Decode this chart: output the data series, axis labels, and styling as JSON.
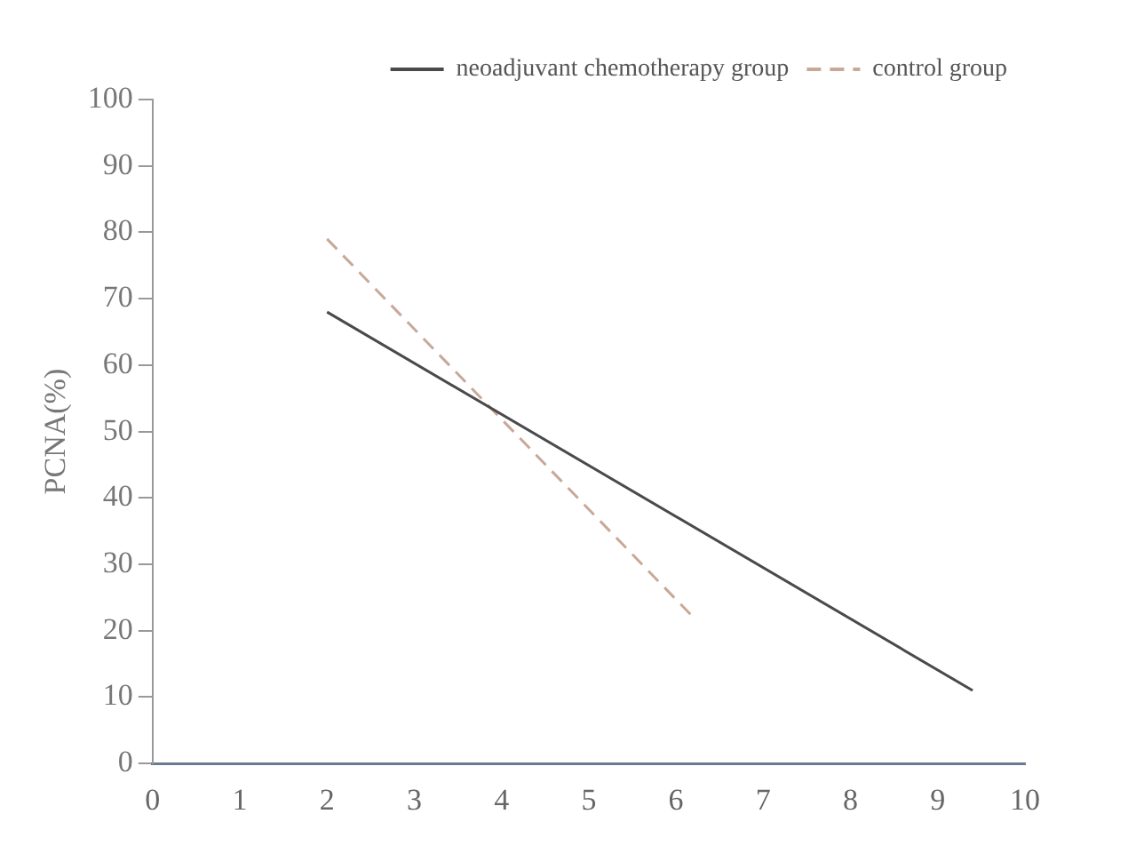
{
  "chart_data": {
    "type": "line",
    "ylabel": "PCNA(%)",
    "xlim": [
      0,
      10
    ],
    "xticks": [
      0,
      1,
      2,
      3,
      4,
      5,
      6,
      7,
      8,
      9,
      10
    ],
    "ylim": [
      0,
      100
    ],
    "yticks": [
      0,
      10,
      20,
      30,
      40,
      50,
      60,
      70,
      80,
      90,
      100
    ],
    "grid": false,
    "legend": "top right",
    "marker": "none",
    "series": [
      {
        "name": "neoadjuvant chemotherapy group",
        "color": "#4a4a4a",
        "x": [
          2,
          9.4
        ],
        "values": [
          68,
          11
        ],
        "line_style": "solid"
      },
      {
        "name": "control group",
        "color": "#c8a898",
        "x": [
          2,
          6.2
        ],
        "values": [
          79,
          22
        ],
        "line_style": "dashed"
      }
    ]
  }
}
